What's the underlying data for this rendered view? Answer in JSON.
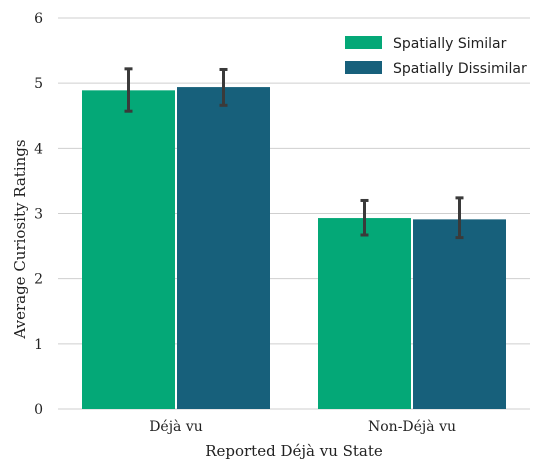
{
  "chart_data": {
    "type": "bar",
    "xlabel": "Reported Déjà vu State",
    "ylabel": "Average Curiosity Ratings",
    "ylim": [
      0,
      6
    ],
    "yticks": [
      "0",
      "1",
      "2",
      "3",
      "4",
      "5",
      "6"
    ],
    "categories": [
      "Déjà vu",
      "Non-Déjà vu"
    ],
    "series": [
      {
        "name": "Spatially Similar",
        "color": "#04a877",
        "values": [
          4.89,
          2.93
        ],
        "error_low": [
          4.57,
          2.67
        ],
        "error_high": [
          5.22,
          3.2
        ]
      },
      {
        "name": "Spatially Dissimilar",
        "color": "#17607b",
        "values": [
          4.94,
          2.91
        ],
        "error_low": [
          4.66,
          2.63
        ],
        "error_high": [
          5.21,
          3.24
        ]
      }
    ],
    "grid": "horizontal",
    "legend_position": "top-right"
  }
}
